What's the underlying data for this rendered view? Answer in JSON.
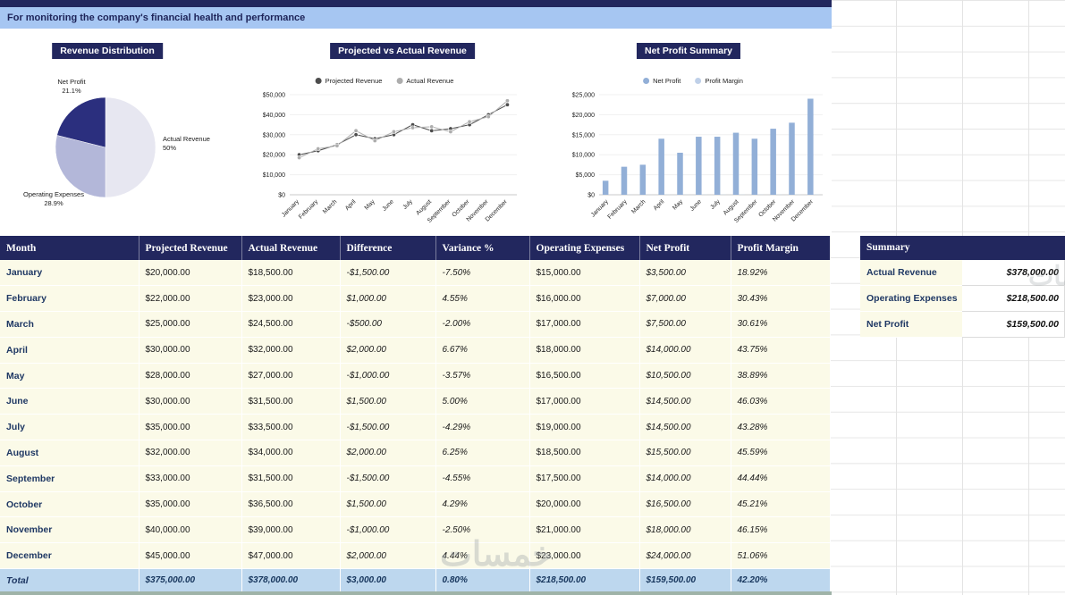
{
  "banner": {
    "text": "For monitoring the company's financial health and performance"
  },
  "theme": {
    "navy": "#22275E",
    "banner_blue": "#A6C6F2",
    "row_cream": "#FBFAE8",
    "total_blue": "#BDD7EE",
    "month_text": "#1F3864"
  },
  "chart_data": [
    {
      "type": "pie",
      "title": "Revenue Distribution",
      "slices": [
        {
          "label": "Actual Revenue",
          "value": 378000,
          "pct": 50.0,
          "pct_text": "50%",
          "color": "#E7E7F1"
        },
        {
          "label": "Operating Expenses",
          "value": 218500,
          "pct": 28.9,
          "pct_text": "28.9%",
          "color": "#B3B7D9"
        },
        {
          "label": "Net Profit",
          "value": 159500,
          "pct": 21.1,
          "pct_text": "21.1%",
          "color": "#2B2F7E"
        }
      ]
    },
    {
      "type": "line",
      "title": "Projected vs Actual Revenue",
      "categories": [
        "January",
        "February",
        "March",
        "April",
        "May",
        "June",
        "July",
        "August",
        "September",
        "October",
        "November",
        "December"
      ],
      "series": [
        {
          "name": "Projected Revenue",
          "color": "#4D4D4D",
          "values": [
            20000,
            22000,
            25000,
            30000,
            28000,
            30000,
            35000,
            32000,
            33000,
            35000,
            40000,
            45000
          ]
        },
        {
          "name": "Actual Revenue",
          "color": "#ADADAD",
          "values": [
            18500,
            23000,
            24500,
            32000,
            27000,
            31500,
            33500,
            34000,
            31500,
            36500,
            39000,
            47000
          ]
        }
      ],
      "ylim": [
        0,
        50000
      ],
      "yticks": [
        "$0",
        "$10,000",
        "$20,000",
        "$30,000",
        "$40,000",
        "$50,000"
      ],
      "legend_position": "top"
    },
    {
      "type": "bar",
      "title": "Net Profit Summary",
      "categories": [
        "January",
        "February",
        "March",
        "April",
        "May",
        "June",
        "July",
        "August",
        "September",
        "October",
        "November",
        "December"
      ],
      "series": [
        {
          "name": "Net Profit",
          "color": "#92AFD7",
          "values": [
            3500,
            7000,
            7500,
            14000,
            10500,
            14500,
            14500,
            15500,
            14000,
            16500,
            18000,
            24000
          ]
        },
        {
          "name": "Profit Margin",
          "color": "#BFD0E8",
          "values": [
            18.92,
            30.43,
            30.61,
            43.75,
            38.89,
            46.03,
            43.28,
            45.59,
            44.44,
            45.21,
            46.15,
            51.06
          ]
        }
      ],
      "ylim": [
        0,
        25000
      ],
      "yticks": [
        "$0",
        "$5,000",
        "$10,000",
        "$15,000",
        "$20,000",
        "$25,000"
      ],
      "legend_position": "top"
    }
  ],
  "table": {
    "columns": [
      "Month",
      "Projected Revenue",
      "Actual Revenue",
      "Difference",
      "Variance %",
      "Operating Expenses",
      "Net Profit",
      "Profit Margin"
    ],
    "rows": [
      [
        "January",
        "$20,000.00",
        "$18,500.00",
        "-$1,500.00",
        "-7.50%",
        "$15,000.00",
        "$3,500.00",
        "18.92%"
      ],
      [
        "February",
        "$22,000.00",
        "$23,000.00",
        "$1,000.00",
        "4.55%",
        "$16,000.00",
        "$7,000.00",
        "30.43%"
      ],
      [
        "March",
        "$25,000.00",
        "$24,500.00",
        "-$500.00",
        "-2.00%",
        "$17,000.00",
        "$7,500.00",
        "30.61%"
      ],
      [
        "April",
        "$30,000.00",
        "$32,000.00",
        "$2,000.00",
        "6.67%",
        "$18,000.00",
        "$14,000.00",
        "43.75%"
      ],
      [
        "May",
        "$28,000.00",
        "$27,000.00",
        "-$1,000.00",
        "-3.57%",
        "$16,500.00",
        "$10,500.00",
        "38.89%"
      ],
      [
        "June",
        "$30,000.00",
        "$31,500.00",
        "$1,500.00",
        "5.00%",
        "$17,000.00",
        "$14,500.00",
        "46.03%"
      ],
      [
        "July",
        "$35,000.00",
        "$33,500.00",
        "-$1,500.00",
        "-4.29%",
        "$19,000.00",
        "$14,500.00",
        "43.28%"
      ],
      [
        "August",
        "$32,000.00",
        "$34,000.00",
        "$2,000.00",
        "6.25%",
        "$18,500.00",
        "$15,500.00",
        "45.59%"
      ],
      [
        "September",
        "$33,000.00",
        "$31,500.00",
        "-$1,500.00",
        "-4.55%",
        "$17,500.00",
        "$14,000.00",
        "44.44%"
      ],
      [
        "October",
        "$35,000.00",
        "$36,500.00",
        "$1,500.00",
        "4.29%",
        "$20,000.00",
        "$16,500.00",
        "45.21%"
      ],
      [
        "November",
        "$40,000.00",
        "$39,000.00",
        "-$1,000.00",
        "-2.50%",
        "$21,000.00",
        "$18,000.00",
        "46.15%"
      ],
      [
        "December",
        "$45,000.00",
        "$47,000.00",
        "$2,000.00",
        "4.44%",
        "$23,000.00",
        "$24,000.00",
        "51.06%"
      ]
    ],
    "total_row": [
      "Total",
      "$375,000.00",
      "$378,000.00",
      "$3,000.00",
      "0.80%",
      "$218,500.00",
      "$159,500.00",
      "42.20%"
    ]
  },
  "summary": {
    "title": "Summary",
    "items": [
      {
        "label": "Actual Revenue",
        "value": "$378,000.00"
      },
      {
        "label": "Operating Expenses",
        "value": "$218,500.00"
      },
      {
        "label": "Net Profit",
        "value": "$159,500.00"
      }
    ]
  },
  "watermark": {
    "text": "خمسات"
  }
}
